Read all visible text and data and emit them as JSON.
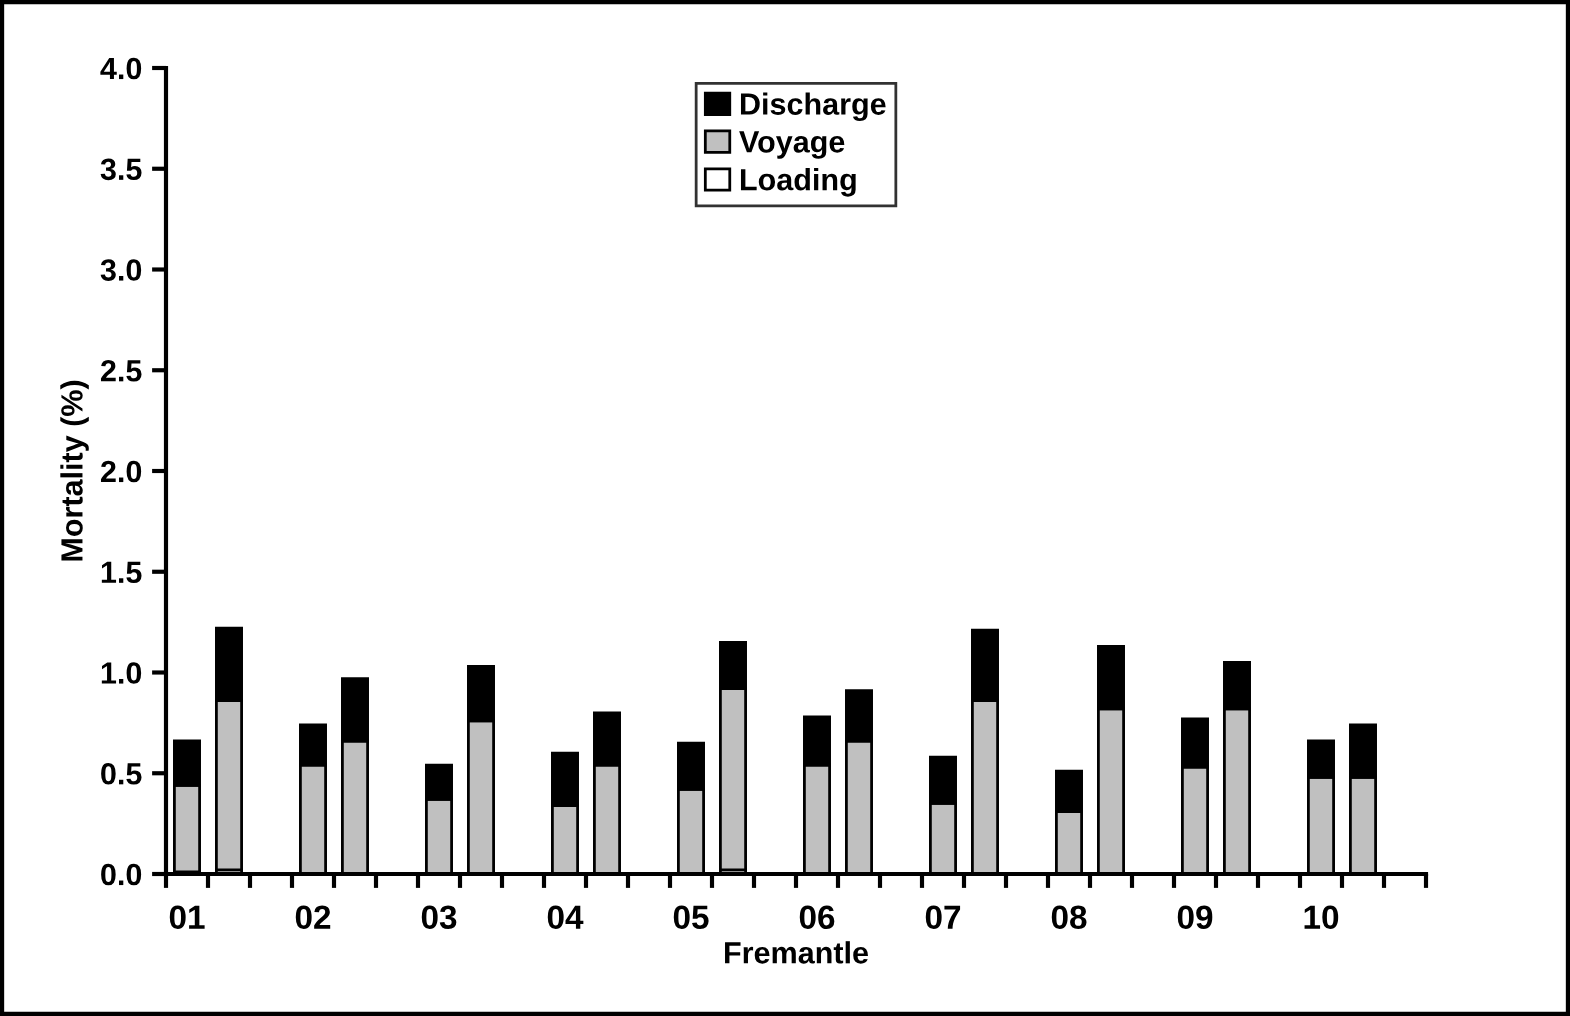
{
  "chart_data": {
    "type": "bar",
    "stacked": true,
    "xlabel": "Fremantle",
    "ylabel": "Mortality (%)",
    "categories": [
      "01",
      null,
      "02",
      null,
      "03",
      null,
      "04",
      null,
      "05",
      null,
      "06",
      null,
      "07",
      null,
      "08",
      null,
      "09",
      null,
      "10",
      null
    ],
    "ylim": [
      0,
      4.0
    ],
    "yticks": [
      {
        "value": 0,
        "label": "0.0"
      },
      {
        "value": 0.5,
        "label": "0.5"
      },
      {
        "value": 1,
        "label": "1.0"
      },
      {
        "value": 1.5,
        "label": "1.5"
      },
      {
        "value": 2,
        "label": "2.0"
      },
      {
        "value": 2.5,
        "label": "2.5"
      },
      {
        "value": 3,
        "label": "3.0"
      },
      {
        "value": 3.5,
        "label": "3.5"
      },
      {
        "value": 4,
        "label": "4.0"
      }
    ],
    "grid": false,
    "legend": "top",
    "series": [
      {
        "name": "Loading",
        "color": "#ffffff",
        "values": [
          0.01,
          0.02,
          0,
          0,
          0,
          0,
          0,
          0,
          0,
          0.02,
          0,
          0,
          0,
          0,
          0,
          0,
          0,
          0,
          0,
          0
        ]
      },
      {
        "name": "Voyage",
        "color": "#c0c0c0",
        "values": [
          0.43,
          0.84,
          0.54,
          0.66,
          0.37,
          0.76,
          0.34,
          0.54,
          0.42,
          0.9,
          0.54,
          0.66,
          0.35,
          0.86,
          0.31,
          0.82,
          0.53,
          0.82,
          0.48,
          0.48
        ]
      },
      {
        "name": "Discharge",
        "color": "#000000",
        "values": [
          0.22,
          0.36,
          0.2,
          0.31,
          0.17,
          0.27,
          0.26,
          0.26,
          0.23,
          0.23,
          0.24,
          0.25,
          0.23,
          0.35,
          0.2,
          0.31,
          0.24,
          0.23,
          0.18,
          0.26
        ]
      }
    ]
  }
}
